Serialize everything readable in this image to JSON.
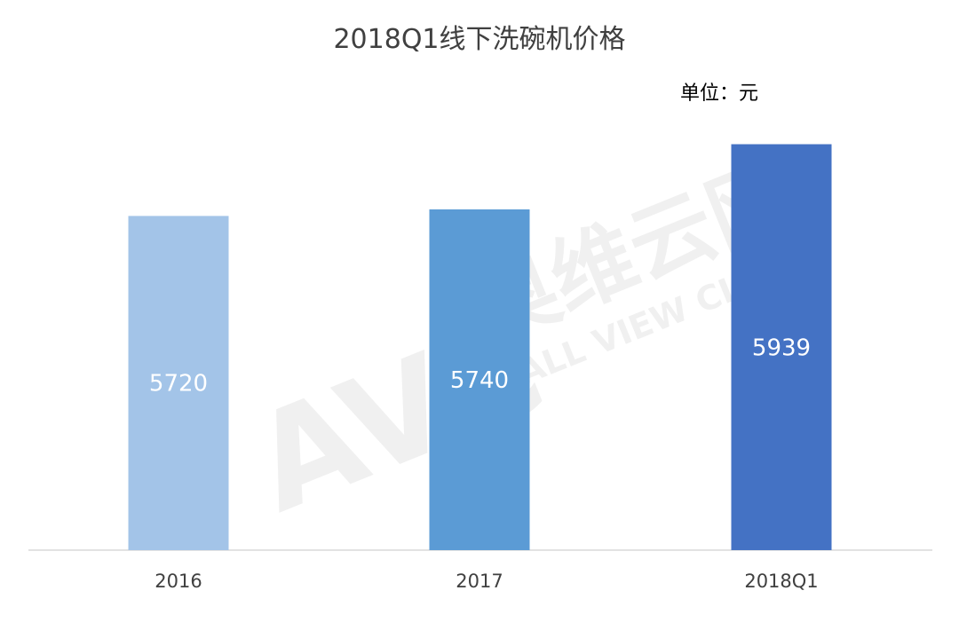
{
  "chart_data": {
    "type": "bar",
    "title": "2018Q1线下洗碗机价格",
    "unit_label": "单位：元",
    "categories": [
      "2016",
      "2017",
      "2018Q1"
    ],
    "values": [
      5720,
      5740,
      5939
    ],
    "bar_colors": [
      "#A3C4E8",
      "#5B9BD5",
      "#4472C4"
    ],
    "label_color": "#FFFFFF",
    "ylim": [
      4700,
      6000
    ],
    "xlabel": "",
    "ylabel": "",
    "grid": false,
    "legend": "none"
  },
  "watermark": {
    "logo_text": "AVC",
    "brand_cn": "奥维云网",
    "brand_en": "ALL VIEW CLOUD"
  }
}
